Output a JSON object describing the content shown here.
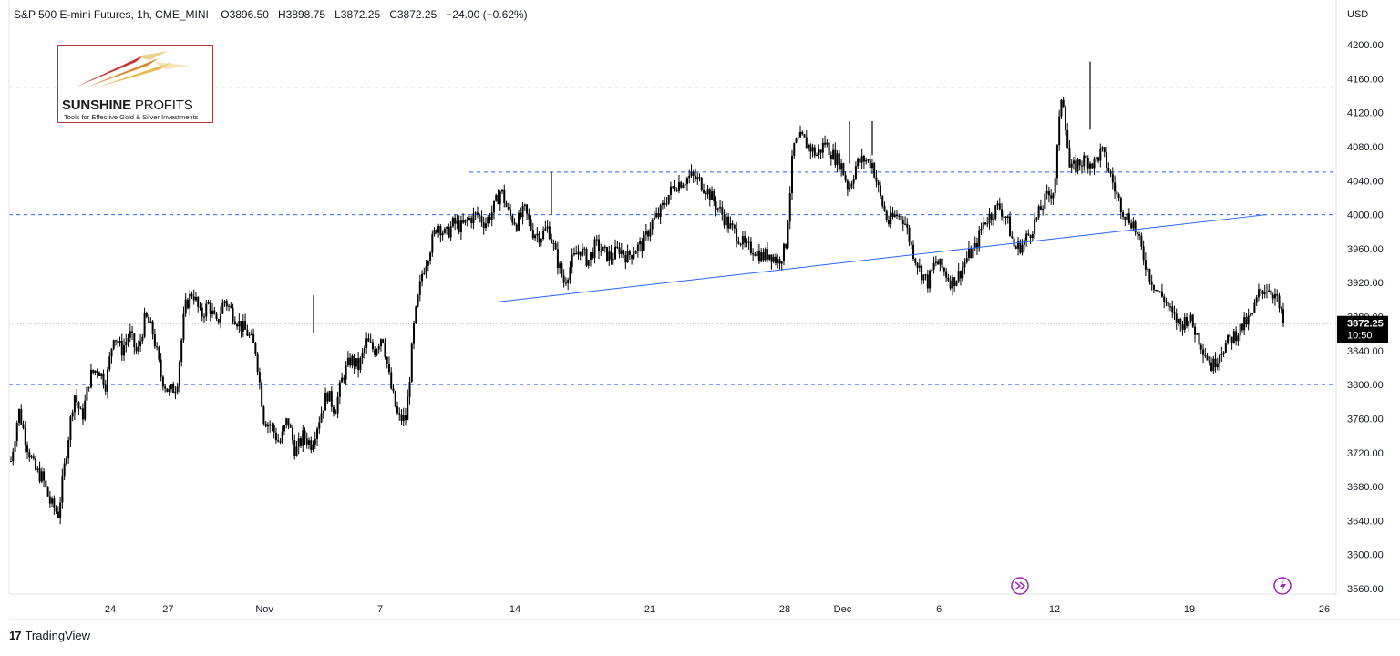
{
  "header": {
    "symbol": "S&P 500 E-mini Futures, 1h, CME_MINI",
    "open_label": "O",
    "open": "3896.50",
    "high_label": "H",
    "high": "3898.75",
    "low_label": "L",
    "low": "3872.25",
    "close_label": "C",
    "close": "3872.25",
    "change": "−24.00 (−0.62%)"
  },
  "logo": {
    "title_bold": "SUNSHINE",
    "title_thin": "PROFITS",
    "subtitle": "Tools for Effective Gold & Silver Investments"
  },
  "footer": {
    "brand": "TradingView",
    "icon": "tradingview-logo-icon"
  },
  "icons": {
    "replay": "fast-forward-circle-icon",
    "flash": "lightning-circle-icon"
  },
  "colors": {
    "candle": "#000000",
    "dashed_level": "#2962ff",
    "trendline": "#2962ff",
    "price_tag_bg": "#000000",
    "icon_purple": "#9c27b0"
  },
  "chart_data": {
    "type": "candlestick",
    "currency_label": "USD",
    "interval": "1h",
    "ylim": [
      3540,
      4220
    ],
    "y_ticks": [
      3560,
      3600,
      3640,
      3680,
      3720,
      3760,
      3800,
      3840,
      3880,
      3920,
      3960,
      4000,
      4040,
      4080,
      4120,
      4160,
      4200
    ],
    "x_tick_labels": [
      "24",
      "27",
      "Nov",
      "7",
      "14",
      "21",
      "28",
      "Dec",
      "6",
      "12",
      "19",
      "26"
    ],
    "last_price": {
      "value": 3872.25,
      "label": "3872.25",
      "countdown": "10:50"
    },
    "horizontal_levels": [
      4150,
      4050,
      4000,
      3800
    ],
    "trendline": {
      "from": {
        "date": "Nov 13",
        "value": 3897
      },
      "to": {
        "date": "Dec 23",
        "value": 4000
      }
    },
    "close_path": [
      [
        "Oct 20",
        3710
      ],
      [
        "Oct 20",
        3770
      ],
      [
        "Oct 21",
        3730
      ],
      [
        "Oct 21",
        3700
      ],
      [
        "Oct 22",
        3690
      ],
      [
        "Oct 22",
        3660
      ],
      [
        "Oct 23",
        3648
      ],
      [
        "Oct 23",
        3720
      ],
      [
        "Oct 23",
        3790
      ],
      [
        "Oct 24",
        3760
      ],
      [
        "Oct 24",
        3810
      ],
      [
        "Oct 25",
        3820
      ],
      [
        "Oct 25",
        3800
      ],
      [
        "Oct 25",
        3860
      ],
      [
        "Oct 26",
        3840
      ],
      [
        "Oct 26",
        3860
      ],
      [
        "Oct 27",
        3835
      ],
      [
        "Oct 27",
        3880
      ],
      [
        "Oct 27",
        3860
      ],
      [
        "Oct 28",
        3810
      ],
      [
        "Oct 28",
        3790
      ],
      [
        "Oct 29",
        3800
      ],
      [
        "Oct 29",
        3890
      ],
      [
        "Oct 29",
        3910
      ],
      [
        "Oct 30",
        3880
      ],
      [
        "Oct 30",
        3895
      ],
      [
        "Oct 31",
        3870
      ],
      [
        "Oct 31",
        3900
      ],
      [
        "Nov 1",
        3885
      ],
      [
        "Nov 1",
        3870
      ],
      [
        "Nov 1",
        3860
      ],
      [
        "Nov 2",
        3840
      ],
      [
        "Nov 2",
        3760
      ],
      [
        "Nov 3",
        3750
      ],
      [
        "Nov 3",
        3730
      ],
      [
        "Nov 3",
        3760
      ],
      [
        "Nov 4",
        3720
      ],
      [
        "Nov 4",
        3740
      ],
      [
        "Nov 4",
        3730
      ],
      [
        "Nov 5",
        3760
      ],
      [
        "Nov 5",
        3790
      ],
      [
        "Nov 6",
        3770
      ],
      [
        "Nov 6",
        3810
      ],
      [
        "Nov 7",
        3830
      ],
      [
        "Nov 7",
        3820
      ],
      [
        "Nov 7",
        3850
      ],
      [
        "Nov 8",
        3840
      ],
      [
        "Nov 8",
        3860
      ],
      [
        "Nov 9",
        3800
      ],
      [
        "Nov 9",
        3760
      ],
      [
        "Nov 10",
        3760
      ],
      [
        "Nov 10",
        3870
      ],
      [
        "Nov 10",
        3930
      ],
      [
        "Nov 11",
        3960
      ],
      [
        "Nov 11",
        3990
      ],
      [
        "Nov 11",
        3975
      ],
      [
        "Nov 12",
        3990
      ],
      [
        "Nov 12",
        3985
      ],
      [
        "Nov 13",
        3995
      ],
      [
        "Nov 13",
        4000
      ],
      [
        "Nov 14",
        3990
      ],
      [
        "Nov 14",
        4005
      ],
      [
        "Nov 15",
        4030
      ],
      [
        "Nov 15",
        4000
      ],
      [
        "Nov 16",
        3990
      ],
      [
        "Nov 16",
        4005
      ],
      [
        "Nov 16",
        3980
      ],
      [
        "Nov 17",
        3975
      ],
      [
        "Nov 17",
        3985
      ],
      [
        "Nov 18",
        3950
      ],
      [
        "Nov 18",
        3920
      ],
      [
        "Nov 19",
        3945
      ],
      [
        "Nov 19",
        3960
      ],
      [
        "Nov 19",
        3945
      ],
      [
        "Nov 20",
        3965
      ],
      [
        "Nov 20",
        3955
      ],
      [
        "Nov 21",
        3950
      ],
      [
        "Nov 21",
        3960
      ],
      [
        "Nov 22",
        3950
      ],
      [
        "Nov 22",
        3960
      ],
      [
        "Nov 23",
        3965
      ],
      [
        "Nov 23",
        3990
      ],
      [
        "Nov 24",
        4000
      ],
      [
        "Nov 24",
        4020
      ],
      [
        "Nov 25",
        4035
      ],
      [
        "Nov 25",
        4040
      ],
      [
        "Nov 26",
        4045
      ],
      [
        "Nov 26",
        4040
      ],
      [
        "Nov 27",
        4030
      ],
      [
        "Nov 27",
        4015
      ],
      [
        "Nov 28",
        4000
      ],
      [
        "Nov 28",
        3985
      ],
      [
        "Nov 28",
        3975
      ],
      [
        "Nov 29",
        3960
      ],
      [
        "Nov 29",
        3960
      ],
      [
        "Nov 30",
        3950
      ],
      [
        "Nov 30",
        3955
      ],
      [
        "Nov 30",
        3945
      ],
      [
        "Dec 1",
        3960
      ],
      [
        "Dec 1",
        4080
      ],
      [
        "Dec 1",
        4090
      ],
      [
        "Dec 2",
        4080
      ],
      [
        "Dec 2",
        4070
      ],
      [
        "Dec 3",
        4085
      ],
      [
        "Dec 3",
        4070
      ],
      [
        "Dec 3",
        4060
      ],
      [
        "Dec 4",
        4030
      ],
      [
        "Dec 4",
        4060
      ],
      [
        "Dec 5",
        4065
      ],
      [
        "Dec 5",
        4060
      ],
      [
        "Dec 5",
        4020
      ],
      [
        "Dec 6",
        3990
      ],
      [
        "Dec 6",
        4000
      ],
      [
        "Dec 7",
        3995
      ],
      [
        "Dec 7",
        3960
      ],
      [
        "Dec 7",
        3935
      ],
      [
        "Dec 8",
        3920
      ],
      [
        "Dec 8",
        3945
      ],
      [
        "Dec 9",
        3935
      ],
      [
        "Dec 9",
        3920
      ],
      [
        "Dec 9",
        3930
      ],
      [
        "Dec 10",
        3950
      ],
      [
        "Dec 10",
        3960
      ],
      [
        "Dec 10",
        3990
      ],
      [
        "Dec 11",
        4000
      ],
      [
        "Dec 11",
        4010
      ],
      [
        "Dec 12",
        3995
      ],
      [
        "Dec 12",
        3960
      ],
      [
        "Dec 12",
        3965
      ],
      [
        "Dec 13",
        3980
      ],
      [
        "Dec 13",
        4000
      ],
      [
        "Dec 13",
        4020
      ],
      [
        "Dec 14",
        4030
      ],
      [
        "Dec 14",
        4150
      ],
      [
        "Dec 14",
        4050
      ],
      [
        "Dec 15",
        4060
      ],
      [
        "Dec 15",
        4065
      ],
      [
        "Dec 15",
        4060
      ],
      [
        "Dec 16",
        4075
      ],
      [
        "Dec 16",
        4050
      ],
      [
        "Dec 16",
        4020
      ],
      [
        "Dec 17",
        4000
      ],
      [
        "Dec 17",
        3990
      ],
      [
        "Dec 17",
        3960
      ],
      [
        "Dec 18",
        3930
      ],
      [
        "Dec 18",
        3910
      ],
      [
        "Dec 18",
        3900
      ],
      [
        "Dec 19",
        3880
      ],
      [
        "Dec 19",
        3870
      ],
      [
        "Dec 19",
        3880
      ],
      [
        "Dec 20",
        3860
      ],
      [
        "Dec 20",
        3840
      ],
      [
        "Dec 20",
        3820
      ],
      [
        "Dec 21",
        3840
      ],
      [
        "Dec 21",
        3850
      ],
      [
        "Dec 21",
        3860
      ],
      [
        "Dec 22",
        3870
      ],
      [
        "Dec 22",
        3880
      ],
      [
        "Dec 22",
        3910
      ],
      [
        "Dec 23",
        3915
      ],
      [
        "Dec 23",
        3905
      ],
      [
        "Dec 23",
        3872.25
      ]
    ]
  }
}
